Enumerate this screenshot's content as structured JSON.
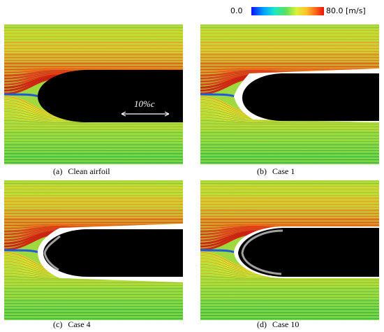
{
  "colorbar": {
    "min_label": "0.0",
    "max_label": "80.0 [m/s]"
  },
  "scale_bar": {
    "label": "10%c"
  },
  "panels": [
    {
      "id": "(a)",
      "caption": "Clean airfoil"
    },
    {
      "id": "(b)",
      "caption": "Case 1"
    },
    {
      "id": "(c)",
      "caption": "Case 4"
    },
    {
      "id": "(d)",
      "caption": "Case 10"
    }
  ]
}
